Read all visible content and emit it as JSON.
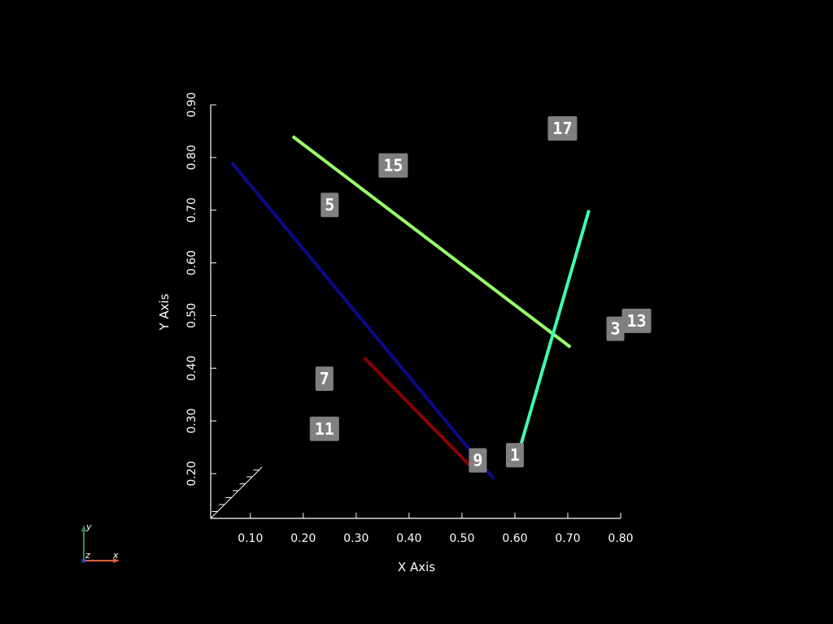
{
  "chart_data": {
    "type": "line",
    "xlabel": "X Axis",
    "ylabel": "Y Axis",
    "xlim": [
      0.025,
      0.8
    ],
    "ylim": [
      0.115,
      0.9
    ],
    "xticks": [
      "0.10",
      "0.20",
      "0.30",
      "0.40",
      "0.50",
      "0.60",
      "0.70",
      "0.80"
    ],
    "yticks": [
      "0.20",
      "0.30",
      "0.40",
      "0.50",
      "0.60",
      "0.70",
      "0.80",
      "0.90"
    ],
    "grid": false,
    "series": [
      {
        "color": "#0a0a8c",
        "x": [
          0.065,
          0.56
        ],
        "y": [
          0.79,
          0.19
        ]
      },
      {
        "color": "#8b0000",
        "x": [
          0.315,
          0.52
        ],
        "y": [
          0.42,
          0.21
        ]
      },
      {
        "color": "#99ff66",
        "x": [
          0.18,
          0.705
        ],
        "y": [
          0.84,
          0.44
        ]
      },
      {
        "color": "#3dffb0",
        "x": [
          0.61,
          0.74
        ],
        "y": [
          0.25,
          0.7
        ]
      }
    ],
    "annotations": [
      {
        "text": "1",
        "x": 0.6,
        "y": 0.235
      },
      {
        "text": "3",
        "x": 0.79,
        "y": 0.475
      },
      {
        "text": "5",
        "x": 0.25,
        "y": 0.71
      },
      {
        "text": "7",
        "x": 0.24,
        "y": 0.38
      },
      {
        "text": "9",
        "x": 0.53,
        "y": 0.225
      },
      {
        "text": "11",
        "x": 0.24,
        "y": 0.285
      },
      {
        "text": "13",
        "x": 0.83,
        "y": 0.49
      },
      {
        "text": "15",
        "x": 0.37,
        "y": 0.785
      },
      {
        "text": "17",
        "x": 0.69,
        "y": 0.855
      }
    ]
  },
  "orientation_widget": {
    "x_label": "x",
    "y_label": "y",
    "z_label": "z"
  },
  "colors": {
    "background": "#000000",
    "axis": "#ffffff",
    "label_box": "#808080"
  }
}
